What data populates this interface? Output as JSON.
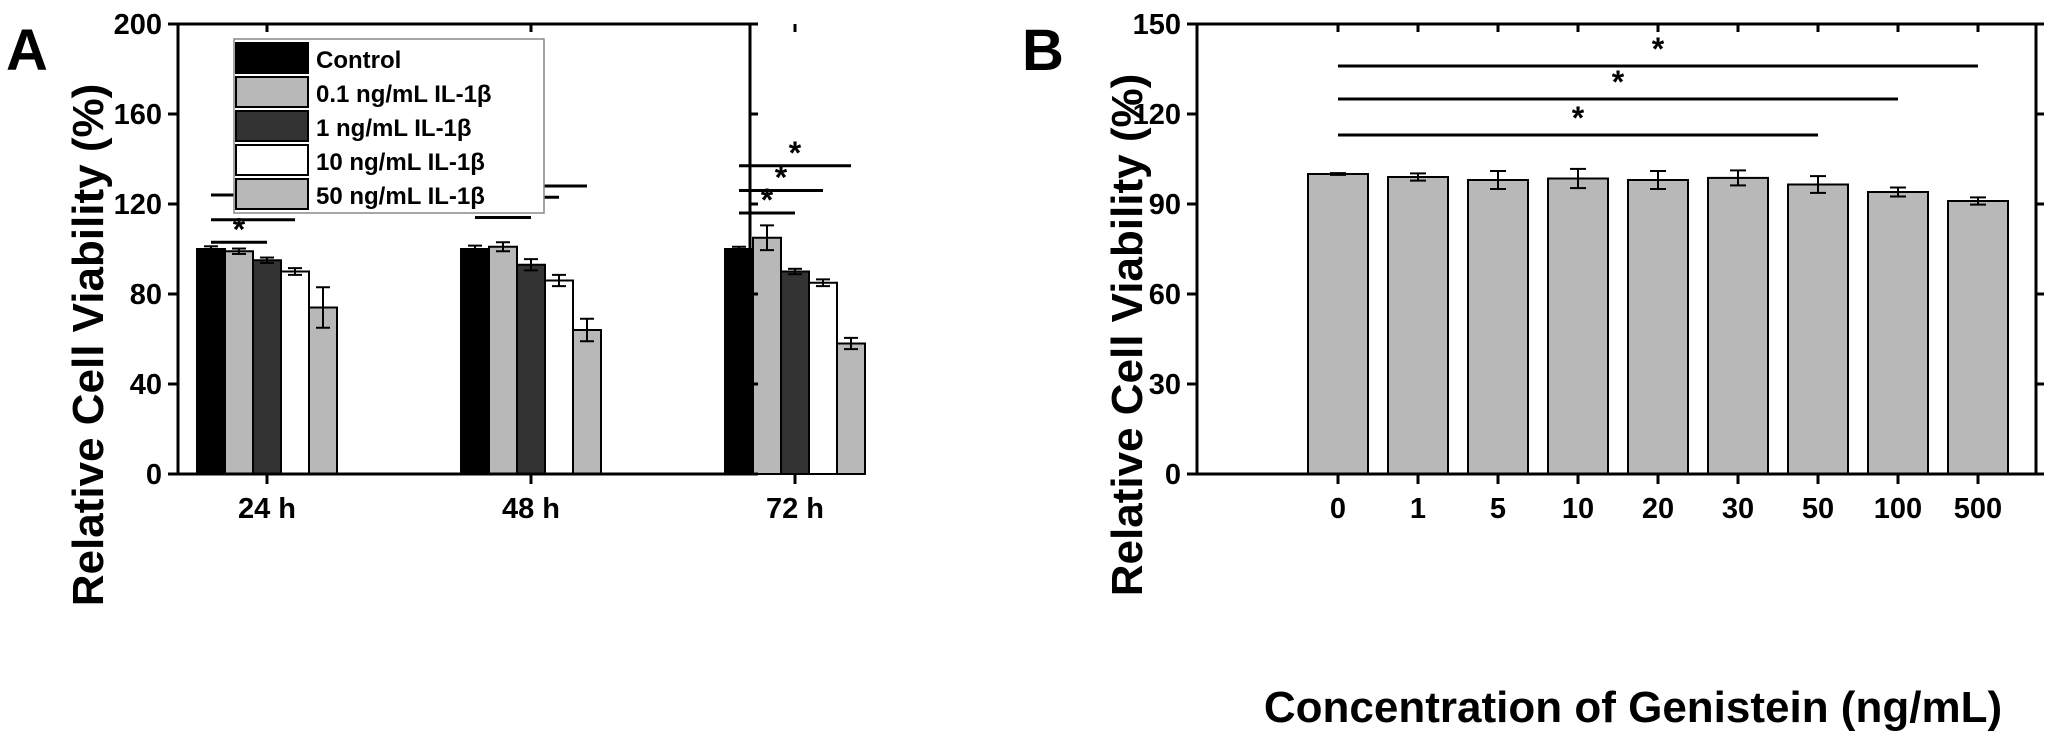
{
  "panels": [
    {
      "letter": "A",
      "chart_data": {
        "type": "bar",
        "ylabel": "Relative Cell Viability (%)",
        "xlabel": "",
        "ylim": [
          0,
          200
        ],
        "yticks": [
          0,
          40,
          80,
          120,
          160,
          200
        ],
        "categories": [
          "24 h",
          "48 h",
          "72 h"
        ],
        "legend_position": "top-left",
        "series": [
          {
            "name": "Control",
            "color": "#000000",
            "values": [
              100,
              100,
              100
            ],
            "errors": [
              1.2,
              1.5,
              1.0
            ]
          },
          {
            "name": "0.1 ng/mL IL-1β",
            "color": "#b8b8b8",
            "values": [
              99,
              101,
              105
            ],
            "errors": [
              1.2,
              2.0,
              5.5
            ]
          },
          {
            "name": "1 ng/mL IL-1β",
            "color": "#333333",
            "values": [
              95,
              93,
              90
            ],
            "errors": [
              1.2,
              2.5,
              1.2
            ]
          },
          {
            "name": "10 ng/mL IL-1β",
            "color": "#ffffff",
            "values": [
              90,
              86,
              85
            ],
            "errors": [
              1.5,
              2.5,
              1.5
            ]
          },
          {
            "name": "50 ng/mL IL-1β",
            "color": "#b8b8b8",
            "values": [
              74,
              64,
              58
            ],
            "errors": [
              9.0,
              5.0,
              2.5
            ]
          }
        ],
        "significance": [
          {
            "category": 0,
            "from_series": 0,
            "to_series": 2,
            "y": 103,
            "label": "*"
          },
          {
            "category": 0,
            "from_series": 0,
            "to_series": 3,
            "y": 113,
            "label": "*"
          },
          {
            "category": 0,
            "from_series": 0,
            "to_series": 4,
            "y": 124,
            "label": "*"
          },
          {
            "category": 1,
            "from_series": 0,
            "to_series": 2,
            "y": 114,
            "label": "*"
          },
          {
            "category": 1,
            "from_series": 0,
            "to_series": 3,
            "y": 123,
            "label": "*"
          },
          {
            "category": 1,
            "from_series": 0,
            "to_series": 4,
            "y": 128,
            "label": "*"
          },
          {
            "category": 2,
            "from_series": 0,
            "to_series": 2,
            "y": 116,
            "label": "*"
          },
          {
            "category": 2,
            "from_series": 0,
            "to_series": 3,
            "y": 126,
            "label": "*"
          },
          {
            "category": 2,
            "from_series": 0,
            "to_series": 4,
            "y": 137,
            "label": "*"
          }
        ]
      }
    },
    {
      "letter": "B",
      "chart_data": {
        "type": "bar",
        "ylabel": "Relative Cell Viability (%)",
        "xlabel": "Concentration of Genistein (ng/mL)",
        "ylim": [
          0,
          150
        ],
        "yticks": [
          0,
          30,
          60,
          90,
          120,
          150
        ],
        "categories": [
          "0",
          "1",
          "5",
          "10",
          "20",
          "30",
          "50",
          "100",
          "500"
        ],
        "series": [
          {
            "name": "",
            "color": "#b8b8b8",
            "values": [
              100,
              99,
              98,
              98.5,
              98,
              98.7,
              96.5,
              94,
              91
            ],
            "errors": [
              0.3,
              1.2,
              3.0,
              3.2,
              3.0,
              2.5,
              2.8,
              1.5,
              1.2
            ]
          }
        ],
        "significance": [
          {
            "from": 0,
            "to": 6,
            "y": 113,
            "label": "*"
          },
          {
            "from": 0,
            "to": 7,
            "y": 125,
            "label": "*"
          },
          {
            "from": 0,
            "to": 8,
            "y": 136,
            "label": "*"
          }
        ]
      }
    }
  ]
}
